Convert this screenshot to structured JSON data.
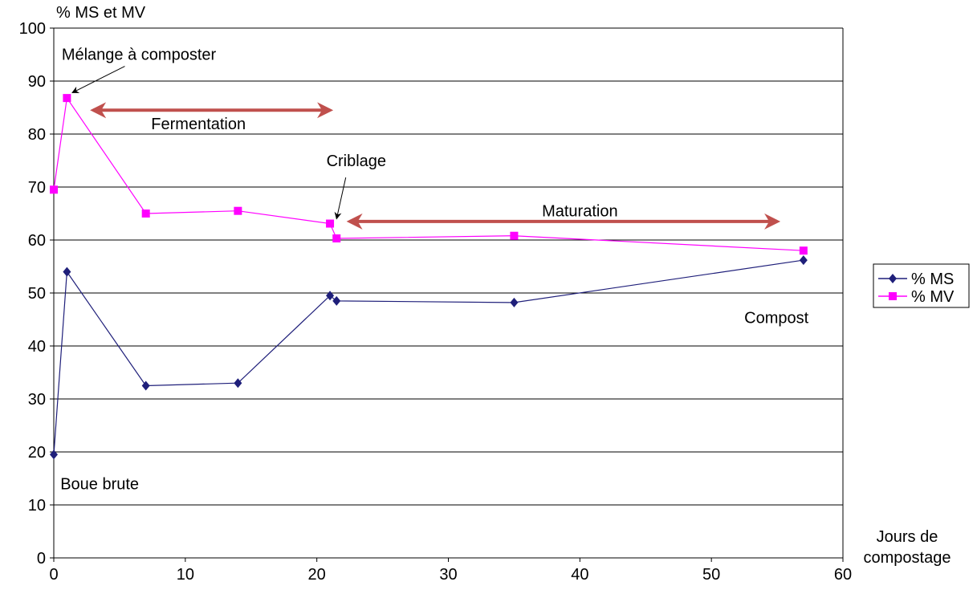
{
  "chart_data": {
    "type": "line",
    "ylabel": "% MS et MV",
    "xlabel_lines": [
      "Jours de",
      "compostage"
    ],
    "xlim": [
      0,
      60
    ],
    "ylim": [
      0,
      100
    ],
    "x_ticks": [
      0,
      10,
      20,
      30,
      40,
      50,
      60
    ],
    "y_ticks": [
      0,
      10,
      20,
      30,
      40,
      50,
      60,
      70,
      80,
      90,
      100
    ],
    "grid": "horizontal",
    "legend_position": "right",
    "series": [
      {
        "name": "% MS",
        "color": "#1F1F7A",
        "marker": "diamond",
        "x": [
          0,
          1,
          7,
          14,
          21,
          21.5,
          35,
          57
        ],
        "y": [
          19.5,
          54,
          32.5,
          33,
          49.5,
          48.5,
          48.2,
          56.2
        ]
      },
      {
        "name": "% MV",
        "color": "#FF00FF",
        "marker": "square",
        "x": [
          0,
          1,
          7,
          14,
          21,
          21.5,
          35,
          57
        ],
        "y": [
          69.5,
          86.8,
          65,
          65.5,
          63.1,
          60.3,
          60.8,
          58
        ]
      }
    ],
    "annotations": [
      {
        "text": "Mélange à composter",
        "x": 0.6,
        "y": 95.1,
        "arrow_to": [
          1.1,
          87.6
        ]
      },
      {
        "text": "Fermentation",
        "x": 11,
        "y": 82
      },
      {
        "text": "Criblage",
        "x": 23,
        "y": 75
      },
      {
        "text": "Maturation",
        "x": 40,
        "y": 65.5
      },
      {
        "text": "Boue brute",
        "x": 0.5,
        "y": 14
      },
      {
        "text": "Compost",
        "x": 52.5,
        "y": 45.4
      }
    ],
    "phase_arrows": [
      {
        "label": "Fermentation",
        "from": 3,
        "to": 21,
        "y": 84.5,
        "color": "#C0504D"
      },
      {
        "label": "Maturation",
        "from": 22.5,
        "to": 55,
        "y": 63.5,
        "color": "#C0504D"
      }
    ]
  }
}
